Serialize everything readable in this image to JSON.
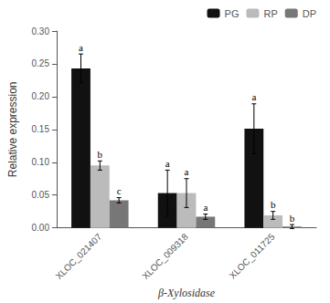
{
  "chart_data": {
    "type": "bar",
    "categories": [
      "XLOC_021407",
      "XLOC_009318",
      "XLOC_011725"
    ],
    "series": [
      {
        "name": "PG",
        "color": "#111111",
        "values": [
          0.243,
          0.053,
          0.151
        ],
        "errors": [
          0.022,
          0.035,
          0.038
        ],
        "annotations": [
          "a",
          "a",
          "a"
        ]
      },
      {
        "name": "RP",
        "color": "#bbbbbb",
        "values": [
          0.095,
          0.053,
          0.019
        ],
        "errors": [
          0.007,
          0.022,
          0.006
        ],
        "annotations": [
          "b",
          "a",
          "b"
        ]
      },
      {
        "name": "DP",
        "color": "#777777",
        "values": [
          0.042,
          0.017,
          0.002
        ],
        "errors": [
          0.004,
          0.004,
          0.003
        ],
        "annotations": [
          "c",
          "a",
          "b"
        ]
      }
    ],
    "xlabel": "β-Xylosidase",
    "ylabel": "Relative expression",
    "ylim": [
      0,
      0.3
    ],
    "yticks": [
      {
        "value": 0.0,
        "label": "0.00"
      },
      0.05,
      {
        "value": 0.1,
        "label": "0.10"
      },
      0.15,
      {
        "value": 0.2,
        "label": "0.20"
      },
      0.25,
      {
        "value": 0.3,
        "label": "0.30"
      }
    ],
    "grid": false,
    "legend": "upper right"
  }
}
